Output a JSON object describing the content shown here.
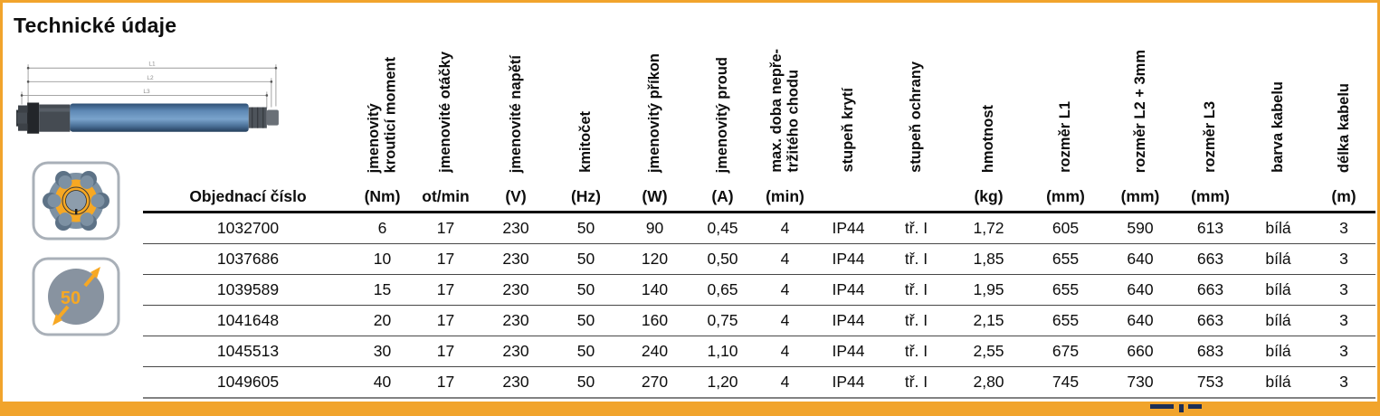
{
  "title": "Technické údaje",
  "accent_color": "#F1A42C",
  "illustration": {
    "dim_labels": [
      "L1",
      "L2",
      "L3"
    ]
  },
  "badges": {
    "diameter_label": "50"
  },
  "table": {
    "columns": [
      {
        "label": "",
        "unit": "Objednací číslo"
      },
      {
        "label": "jmenovitý\nkrouticí moment",
        "unit": "(Nm)"
      },
      {
        "label": "jmenovité otáčky",
        "unit": "ot/min"
      },
      {
        "label": "jmenovité napětí",
        "unit": "(V)"
      },
      {
        "label": "kmitočet",
        "unit": "(Hz)"
      },
      {
        "label": "jmenovitý příkon",
        "unit": "(W)"
      },
      {
        "label": "jmenovitý proud",
        "unit": "(A)"
      },
      {
        "label": "max. doba nepře-\ntržitého chodu",
        "unit": "(min)"
      },
      {
        "label": "stupeň krytí",
        "unit": ""
      },
      {
        "label": "stupeň ochrany",
        "unit": ""
      },
      {
        "label": "hmotnost",
        "unit": "(kg)"
      },
      {
        "label": "rozměr L1",
        "unit": "(mm)"
      },
      {
        "label": "rozměr L2 + 3mm",
        "unit": "(mm)"
      },
      {
        "label": "rozměr L3",
        "unit": "(mm)"
      },
      {
        "label": "barva kabelu",
        "unit": ""
      },
      {
        "label": "délka kabelu",
        "unit": "(m)"
      }
    ],
    "rows": [
      [
        "1032700",
        "6",
        "17",
        "230",
        "50",
        "90",
        "0,45",
        "4",
        "IP44",
        "tř. I",
        "1,72",
        "605",
        "590",
        "613",
        "bílá",
        "3"
      ],
      [
        "1037686",
        "10",
        "17",
        "230",
        "50",
        "120",
        "0,50",
        "4",
        "IP44",
        "tř. I",
        "1,85",
        "655",
        "640",
        "663",
        "bílá",
        "3"
      ],
      [
        "1039589",
        "15",
        "17",
        "230",
        "50",
        "140",
        "0,65",
        "4",
        "IP44",
        "tř. I",
        "1,95",
        "655",
        "640",
        "663",
        "bílá",
        "3"
      ],
      [
        "1041648",
        "20",
        "17",
        "230",
        "50",
        "160",
        "0,75",
        "4",
        "IP44",
        "tř. I",
        "2,15",
        "655",
        "640",
        "663",
        "bílá",
        "3"
      ],
      [
        "1045513",
        "30",
        "17",
        "230",
        "50",
        "240",
        "1,10",
        "4",
        "IP44",
        "tř. I",
        "2,55",
        "675",
        "660",
        "683",
        "bílá",
        "3"
      ],
      [
        "1049605",
        "40",
        "17",
        "230",
        "50",
        "270",
        "1,20",
        "4",
        "IP44",
        "tř. I",
        "2,80",
        "745",
        "730",
        "753",
        "bílá",
        "3"
      ]
    ]
  }
}
